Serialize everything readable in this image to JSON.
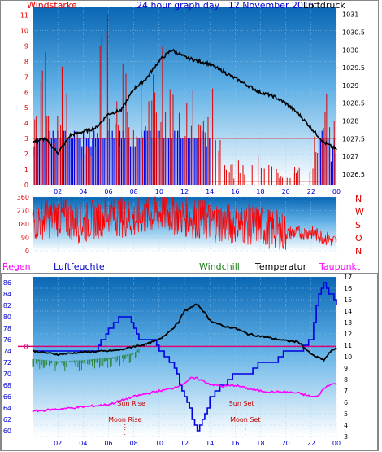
{
  "title": "24 hour graph day : 12 November 2015",
  "colors": {
    "wind": "#e00000",
    "gust": "#0000e0",
    "pressure": "#000000",
    "humidity": "#0000e0",
    "temperature": "#000000",
    "windchill": "#1a7a1a",
    "dewpoint": "#ff00ff",
    "zero_line": "#d80074",
    "label_blue": "#0000cc",
    "label_red": "#e00000",
    "sky_top": "#0a67b4",
    "sky_bottom": "#ffffff"
  },
  "chart_data": [
    {
      "type": "bar",
      "name": "wind-pressure-panel",
      "left_label": "Windstärke",
      "right_label": "Luftdruck",
      "left_ticks": [
        "0",
        "1",
        "2",
        "3",
        "4",
        "5",
        "6",
        "7",
        "8",
        "9",
        "10",
        "11"
      ],
      "right_ticks": [
        "1026.5",
        "1027",
        "1027.5",
        "1028",
        "1028.5",
        "1029",
        "1029.5",
        "1030",
        "1030.5",
        "1031"
      ],
      "x_ticks": [
        "02",
        "04",
        "06",
        "08",
        "10",
        "12",
        "14",
        "16",
        "18",
        "20",
        "22",
        "00"
      ],
      "ylim_left": [
        0,
        11.5
      ],
      "ylim_right": [
        1026.2,
        1031.2
      ],
      "grid": true,
      "series": [
        {
          "name": "Windstärke",
          "hours": [
            0,
            1,
            2,
            3,
            4,
            5,
            6,
            6.5,
            7,
            8,
            9,
            10,
            11,
            12,
            13,
            14,
            15,
            16,
            17,
            18,
            19,
            20,
            21,
            22,
            23,
            23.5,
            24
          ],
          "values": [
            3,
            7,
            6,
            10,
            4,
            6,
            11,
            5,
            7,
            5,
            6,
            7,
            8,
            7,
            5,
            6,
            2,
            1,
            2,
            2,
            1,
            1,
            1,
            2,
            7,
            4,
            3
          ]
        },
        {
          "name": "Luftdruck",
          "hours": [
            0,
            1,
            2,
            3,
            4,
            5,
            6,
            7,
            8,
            9,
            10,
            11,
            12,
            13,
            14,
            15,
            16,
            17,
            18,
            19,
            20,
            21,
            22,
            23,
            24
          ],
          "values": [
            1027.4,
            1027.5,
            1027.1,
            1027.6,
            1027.7,
            1027.8,
            1028.2,
            1028.3,
            1028.9,
            1029.2,
            1029.7,
            1030.0,
            1029.8,
            1029.7,
            1029.6,
            1029.4,
            1029.2,
            1029.0,
            1028.8,
            1028.7,
            1028.5,
            1028.2,
            1027.8,
            1027.4,
            1027.2
          ]
        }
      ]
    },
    {
      "type": "line",
      "name": "wind-direction-panel",
      "left_ticks": [
        "0",
        "90",
        "180",
        "270",
        "360"
      ],
      "compass_letters": [
        "N",
        "W",
        "S",
        "O",
        "N"
      ],
      "ylim": [
        0,
        360
      ],
      "grid": true,
      "series": [
        {
          "name": "Windrichtung",
          "hours": [
            0,
            2,
            4,
            6,
            8,
            10,
            12,
            14,
            16,
            18,
            20,
            22,
            24
          ],
          "values": [
            200,
            230,
            180,
            250,
            210,
            260,
            230,
            200,
            180,
            170,
            120,
            120,
            60
          ]
        }
      ]
    },
    {
      "type": "line",
      "name": "temperature-humidity-panel",
      "legend": [
        "Regen",
        "Luftfeuchte",
        "Windchill",
        "Temperatur",
        "Taupunkt"
      ],
      "left_ticks": [
        "60",
        "62",
        "64",
        "66",
        "68",
        "70",
        "72",
        "74",
        "76",
        "78",
        "80",
        "82",
        "84",
        "86"
      ],
      "right_ticks": [
        "3",
        "4",
        "5",
        "6",
        "7",
        "8",
        "9",
        "10",
        "11",
        "12",
        "13",
        "14",
        "15",
        "16",
        "17"
      ],
      "ylim_left": [
        59,
        87
      ],
      "ylim_right": [
        3,
        17
      ],
      "zero_label": "0",
      "zero_value_right": 10.9,
      "grid": true,
      "annotations": [
        {
          "text": "Sun Rise",
          "hour": 7.8
        },
        {
          "text": "Sun Set",
          "hour": 16.5
        },
        {
          "text": "Moon Rise",
          "hour": 7.3
        },
        {
          "text": "Moon Set",
          "hour": 16.8
        }
      ],
      "series": [
        {
          "name": "Luftfeuchte",
          "hours": [
            0,
            3,
            5,
            6,
            7,
            7.5,
            8,
            8.5,
            9,
            9.5,
            10,
            11,
            12,
            13,
            13.5,
            14,
            15,
            16,
            17,
            18,
            19,
            20,
            21,
            22,
            22.5,
            23,
            23.5,
            24
          ],
          "values": [
            74,
            74,
            74,
            78,
            80,
            80,
            78,
            76,
            76,
            76,
            74,
            72,
            66,
            60,
            62,
            66,
            68,
            70,
            70,
            72,
            72,
            74,
            74,
            76,
            84,
            86,
            84,
            82
          ]
        },
        {
          "name": "Temperatur",
          "hours": [
            0,
            2,
            4,
            6,
            7,
            8,
            9,
            10,
            11,
            11.5,
            12,
            13,
            13.5,
            14,
            15,
            16,
            17,
            18,
            19,
            20,
            21,
            22,
            23,
            23.5,
            24
          ],
          "values": [
            10.5,
            10.2,
            10.4,
            10.5,
            10.6,
            10.9,
            11.1,
            11.5,
            12.4,
            13,
            14,
            14.6,
            14,
            13.2,
            12.7,
            12.5,
            12,
            11.8,
            11.6,
            11.4,
            11.3,
            10.2,
            9.7,
            10.4,
            10.8
          ]
        },
        {
          "name": "Windchill",
          "hours": [
            0,
            2,
            4,
            6,
            7,
            8,
            8.5
          ],
          "values": [
            9.8,
            9.6,
            9.7,
            9.9,
            10.1,
            10.3,
            10.8
          ]
        },
        {
          "name": "Taupunkt",
          "hours": [
            0,
            2,
            4,
            6,
            8,
            10,
            11,
            12,
            12.5,
            13,
            14,
            15,
            16,
            17,
            18,
            19,
            20,
            21,
            22,
            22.5,
            23,
            23.5,
            24
          ],
          "values": [
            5.2,
            5.4,
            5.6,
            5.8,
            6.5,
            7,
            7.2,
            7.7,
            8.1,
            8.1,
            7.6,
            7.4,
            7.5,
            7.2,
            7,
            6.9,
            6.9,
            6.8,
            6.5,
            6.5,
            7.2,
            7.6,
            7.6
          ]
        }
      ]
    }
  ]
}
